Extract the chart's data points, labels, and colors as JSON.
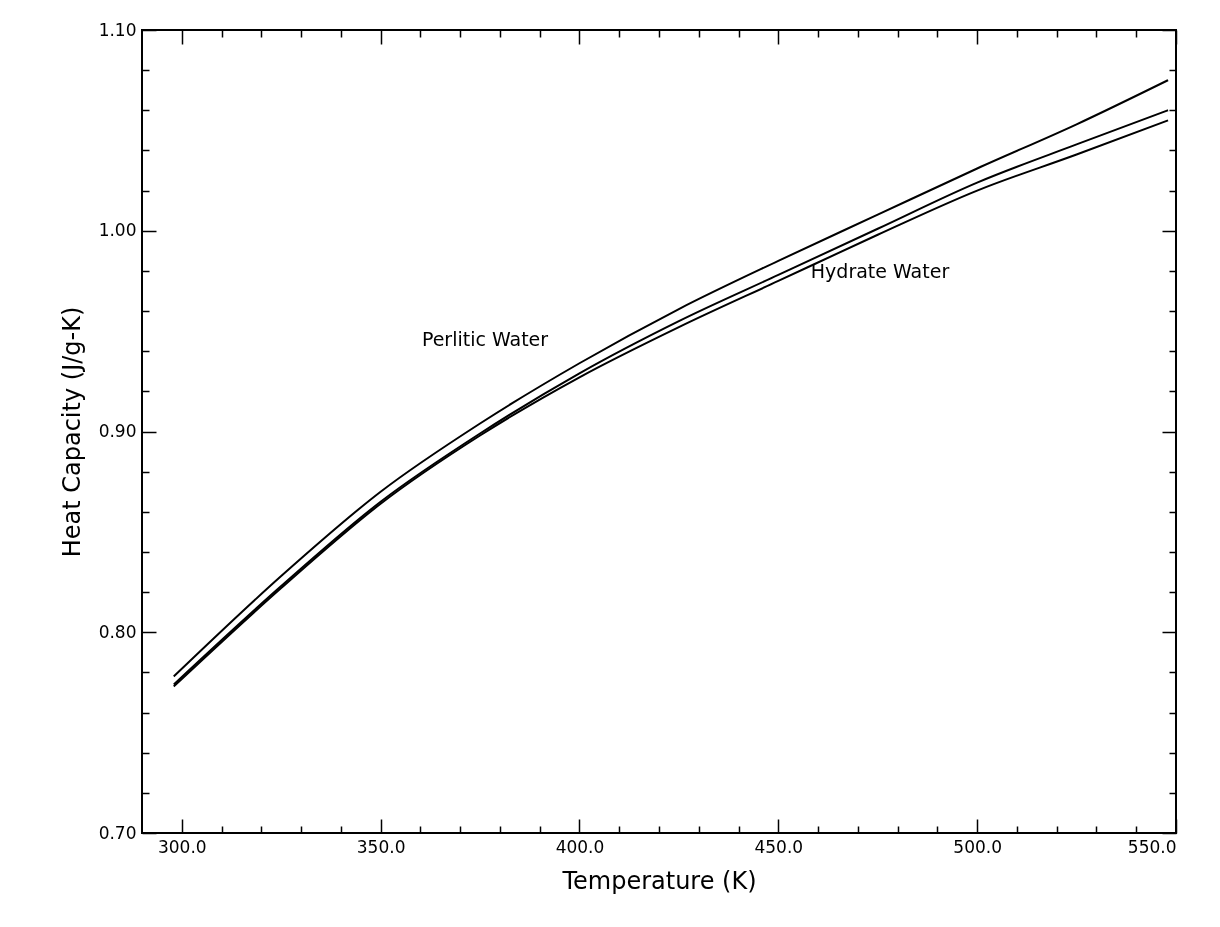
{
  "chart_data": {
    "type": "line",
    "xlabel": "Temperature (K)",
    "ylabel": "Heat Capacity (J/g-K)",
    "xlim": [
      290,
      550
    ],
    "ylim": [
      0.7,
      1.1
    ],
    "xticks": [
      {
        "value": 300,
        "label": "300.0"
      },
      {
        "value": 310,
        "label": null
      },
      {
        "value": 320,
        "label": null
      },
      {
        "value": 330,
        "label": null
      },
      {
        "value": 340,
        "label": null
      },
      {
        "value": 350,
        "label": "350.0"
      },
      {
        "value": 360,
        "label": null
      },
      {
        "value": 370,
        "label": null
      },
      {
        "value": 380,
        "label": null
      },
      {
        "value": 390,
        "label": null
      },
      {
        "value": 400,
        "label": "400.0"
      },
      {
        "value": 410,
        "label": null
      },
      {
        "value": 420,
        "label": null
      },
      {
        "value": 430,
        "label": null
      },
      {
        "value": 440,
        "label": null
      },
      {
        "value": 450,
        "label": "450.0"
      },
      {
        "value": 460,
        "label": null
      },
      {
        "value": 470,
        "label": null
      },
      {
        "value": 480,
        "label": null
      },
      {
        "value": 490,
        "label": null
      },
      {
        "value": 500,
        "label": "500.0"
      },
      {
        "value": 510,
        "label": null
      },
      {
        "value": 520,
        "label": null
      },
      {
        "value": 530,
        "label": null
      },
      {
        "value": 540,
        "label": null
      },
      {
        "value": 550,
        "label": "550.0"
      }
    ],
    "yticks": [
      {
        "value": 0.7,
        "label": "0.70"
      },
      {
        "value": 0.72,
        "label": null
      },
      {
        "value": 0.74,
        "label": null
      },
      {
        "value": 0.76,
        "label": null
      },
      {
        "value": 0.78,
        "label": null
      },
      {
        "value": 0.8,
        "label": "0.80"
      },
      {
        "value": 0.82,
        "label": null
      },
      {
        "value": 0.84,
        "label": null
      },
      {
        "value": 0.86,
        "label": null
      },
      {
        "value": 0.88,
        "label": null
      },
      {
        "value": 0.9,
        "label": "0.90"
      },
      {
        "value": 0.92,
        "label": null
      },
      {
        "value": 0.94,
        "label": null
      },
      {
        "value": 0.96,
        "label": null
      },
      {
        "value": 0.98,
        "label": null
      },
      {
        "value": 1.0,
        "label": "1.00"
      },
      {
        "value": 1.02,
        "label": null
      },
      {
        "value": 1.04,
        "label": null
      },
      {
        "value": 1.06,
        "label": null
      },
      {
        "value": 1.08,
        "label": null
      },
      {
        "value": 1.1,
        "label": "1.10"
      }
    ],
    "x": [
      298,
      325,
      350,
      375,
      400,
      425,
      450,
      475,
      500,
      525,
      548
    ],
    "series": [
      {
        "color": "#000000",
        "values": [
          0.778,
          0.828,
          0.87,
          0.904,
          0.934,
          0.961,
          0.985,
          1.008,
          1.031,
          1.053,
          1.075
        ]
      },
      {
        "color": "#000000",
        "values": [
          0.774,
          0.823,
          0.865,
          0.899,
          0.929,
          0.955,
          0.978,
          1.001,
          1.024,
          1.043,
          1.06
        ]
      },
      {
        "color": "#000000",
        "values": [
          0.773,
          0.822,
          0.864,
          0.898,
          0.927,
          0.952,
          0.975,
          0.998,
          1.02,
          1.038,
          1.055
        ]
      }
    ],
    "annotations": [
      "Perlitic Water",
      "Hydrate Water"
    ],
    "grid": false,
    "legend": false,
    "line_style": "solid",
    "marker": "none"
  }
}
